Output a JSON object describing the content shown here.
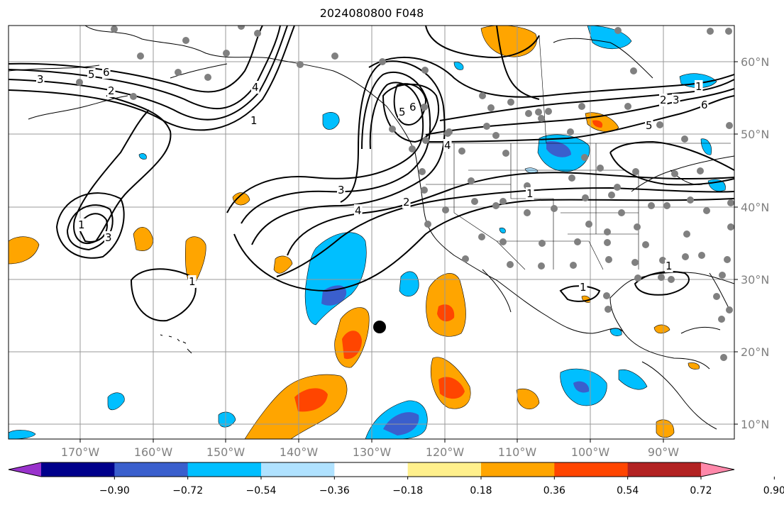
{
  "title": "2024080800 F048",
  "lon_labels": [
    "170°W",
    "160°W",
    "150°W",
    "140°W",
    "130°W",
    "120°W",
    "110°W",
    "100°W",
    "90°W"
  ],
  "lat_labels": [
    "60°N",
    "50°N",
    "40°N",
    "30°N",
    "20°N",
    "10°N"
  ],
  "colorbar": {
    "ticks": [
      "−0.90",
      "−0.72",
      "−0.54",
      "−0.36",
      "−0.18",
      "0.18",
      "0.36",
      "0.54",
      "0.72",
      "0.90"
    ],
    "colors": [
      "#9932cc",
      "#00008b",
      "#3a5fcd",
      "#00bfff",
      "#b0e2ff",
      "#ffffff",
      "#fff08c",
      "#ffa500",
      "#ff4500",
      "#b22222",
      "#ff88aa"
    ]
  },
  "contour_labels": [
    "3",
    "5",
    "6",
    "2",
    "4",
    "1",
    "3",
    "4",
    "2",
    "1",
    "1",
    "3",
    "5",
    "6",
    "1",
    "2",
    "3",
    "6",
    "5",
    "4",
    "1",
    "1",
    "1"
  ],
  "marker": "storm-center"
}
